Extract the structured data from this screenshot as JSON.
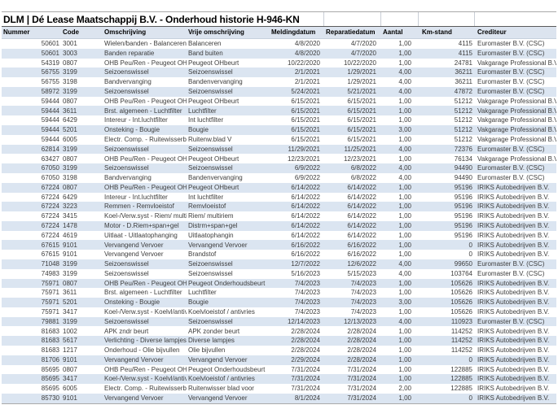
{
  "report": {
    "title": "DLM | Dé Lease Maatschappij B.V. - Onderhoud historie H-946-KN"
  },
  "colors": {
    "row_stripe": "#dbe5f1",
    "header_bg": "#dce4ef",
    "data_text": "#3d3d3d"
  },
  "table": {
    "columns": [
      "Nummer",
      "Code",
      "Omschrijving",
      "Vrije omschrijving",
      "Meldingdatum",
      "Reparatiedatum",
      "Aantal",
      "Km-stand",
      "Crediteur"
    ],
    "rows": [
      [
        "50601",
        "3001",
        "Wielen/banden - Balanceren",
        "Balanceren",
        "4/8/2020",
        "4/7/2020",
        "1,00",
        "4115",
        "Euromaster B.V. (CSC)"
      ],
      [
        "50601",
        "3003",
        "Banden reparatie",
        "Band buiten",
        "4/8/2020",
        "4/7/2020",
        "1,00",
        "4115",
        "Euromaster B.V. (CSC)"
      ],
      [
        "54319",
        "0807",
        "OHB Peu/Ren - Peugeot OHbe",
        "Peugeot OHbeurt",
        "10/22/2020",
        "10/22/2020",
        "1,00",
        "24781",
        "Vakgarage Professional B.V."
      ],
      [
        "56755",
        "3199",
        "Seizoenswissel",
        "Seizoenswissel",
        "2/1/2021",
        "1/29/2021",
        "4,00",
        "36211",
        "Euromaster B.V. (CSC)"
      ],
      [
        "56755",
        "3198",
        "Bandvervanging",
        "Bandenvervanging",
        "2/1/2021",
        "1/29/2021",
        "4,00",
        "36211",
        "Euromaster B.V. (CSC)"
      ],
      [
        "58972",
        "3199",
        "Seizoenswissel",
        "Seizoenswissel",
        "5/24/2021",
        "5/21/2021",
        "4,00",
        "47872",
        "Euromaster B.V. (CSC)"
      ],
      [
        "59444",
        "0807",
        "OHB Peu/Ren - Peugeot OHbe",
        "Peugeot OHbeurt",
        "6/15/2021",
        "6/15/2021",
        "1,00",
        "51212",
        "Vakgarage Professional B.V."
      ],
      [
        "59444",
        "3611",
        "Brst. algemeen - Luchtfilter",
        "Luchtfilter",
        "6/15/2021",
        "6/15/2021",
        "1,00",
        "51212",
        "Vakgarage Professional B.V."
      ],
      [
        "59444",
        "6429",
        "Intereur - Int.luchtfilter",
        "Int luchtfilter",
        "6/15/2021",
        "6/15/2021",
        "1,00",
        "51212",
        "Vakgarage Professional B.V."
      ],
      [
        "59444",
        "5201",
        "Onsteking - Bougie",
        "Bougie",
        "6/15/2021",
        "6/15/2021",
        "3,00",
        "51212",
        "Vakgarage Professional B.V."
      ],
      [
        "59444",
        "6005",
        "Electr. Comp. - Ruitewisserbla",
        "Ruitenw.blad V",
        "6/15/2021",
        "6/15/2021",
        "1,00",
        "51212",
        "Vakgarage Professional B.V."
      ],
      [
        "62814",
        "3199",
        "Seizoenswissel",
        "Seizoenswissel",
        "11/29/2021",
        "11/25/2021",
        "4,00",
        "72376",
        "Euromaster B.V. (CSC)"
      ],
      [
        "63427",
        "0807",
        "OHB Peu/Ren - Peugeot OHbe",
        "Peugeot OHbeurt",
        "12/23/2021",
        "12/23/2021",
        "1,00",
        "76134",
        "Vakgarage Professional B.V."
      ],
      [
        "67050",
        "3199",
        "Seizoenswissel",
        "Seizoenswissel",
        "6/9/2022",
        "6/8/2022",
        "4,00",
        "94490",
        "Euromaster B.V. (CSC)"
      ],
      [
        "67050",
        "3198",
        "Bandvervanging",
        "Bandenvervanging",
        "6/9/2022",
        "6/8/2022",
        "4,00",
        "94490",
        "Euromaster B.V. (CSC)"
      ],
      [
        "67224",
        "0807",
        "OHB Peu/Ren - Peugeot OHbe",
        "Peugeot OHbeurt",
        "6/14/2022",
        "6/14/2022",
        "1,00",
        "95196",
        "IRIKS Autobedrijven B.V."
      ],
      [
        "67224",
        "6429",
        "Intereur - Int.luchtfilter",
        "Int luchtfilter",
        "6/14/2022",
        "6/14/2022",
        "1,00",
        "95196",
        "IRIKS Autobedrijven B.V."
      ],
      [
        "67224",
        "3223",
        "Remmen - Remvloeistof",
        "Remvloeistof",
        "6/14/2022",
        "6/14/2022",
        "1,00",
        "95196",
        "IRIKS Autobedrijven B.V."
      ],
      [
        "67224",
        "3415",
        "Koel-/Verw.syst - Riem/ multiri",
        "Riem/ multiriem",
        "6/14/2022",
        "6/14/2022",
        "1,00",
        "95196",
        "IRIKS Autobedrijven B.V."
      ],
      [
        "67224",
        "1478",
        "Motor - D.Riem+span+gel",
        "Distrm+span+gel",
        "6/14/2022",
        "6/14/2022",
        "1,00",
        "95196",
        "IRIKS Autobedrijven B.V."
      ],
      [
        "67224",
        "4619",
        "Uitlaat - Uitlaatophanging",
        "Uitlaatophangin",
        "6/14/2022",
        "6/14/2022",
        "1,00",
        "95196",
        "IRIKS Autobedrijven B.V."
      ],
      [
        "67615",
        "9101",
        "Vervangend Vervoer",
        "Vervangend Vervoer",
        "6/16/2022",
        "6/16/2022",
        "1,00",
        "0",
        "IRIKS Autobedrijven B.V."
      ],
      [
        "67615",
        "9101",
        "Vervangend Vervoer",
        "Brandstof",
        "6/16/2022",
        "6/16/2022",
        "1,00",
        "0",
        "IRIKS Autobedrijven B.V."
      ],
      [
        "71048",
        "3199",
        "Seizoenswissel",
        "Seizoenswissel",
        "12/7/2022",
        "12/6/2022",
        "4,00",
        "99650",
        "Euromaster B.V. (CSC)"
      ],
      [
        "74983",
        "3199",
        "Seizoenswissel",
        "Seizoenswissel",
        "5/16/2023",
        "5/15/2023",
        "4,00",
        "103764",
        "Euromaster B.V. (CSC)"
      ],
      [
        "75971",
        "0807",
        "OHB Peu/Ren - Peugeot OHbe",
        "Peugeot Onderhoudsbeurt",
        "7/4/2023",
        "7/4/2023",
        "1,00",
        "105626",
        "IRIKS Autobedrijven B.V."
      ],
      [
        "75971",
        "3611",
        "Brst. algemeen - Luchtfilter",
        "Luchtfilter",
        "7/4/2023",
        "7/4/2023",
        "1,00",
        "105626",
        "IRIKS Autobedrijven B.V."
      ],
      [
        "75971",
        "5201",
        "Onsteking - Bougie",
        "Bougie",
        "7/4/2023",
        "7/4/2023",
        "3,00",
        "105626",
        "IRIKS Autobedrijven B.V."
      ],
      [
        "75971",
        "3417",
        "Koel-/Verw.syst - Koelvl/antivri",
        "Koelvloeistof / antivries",
        "7/4/2023",
        "7/4/2023",
        "1,00",
        "105626",
        "IRIKS Autobedrijven B.V."
      ],
      [
        "79881",
        "3199",
        "Seizoenswissel",
        "Seizoenswissel",
        "12/14/2023",
        "12/13/2023",
        "4,00",
        "110923",
        "Euromaster B.V. (CSC)"
      ],
      [
        "81683",
        "1002",
        "APK zndr beurt",
        "APK zonder beurt",
        "2/28/2024",
        "2/28/2024",
        "1,00",
        "114252",
        "IRIKS Autobedrijven B.V."
      ],
      [
        "81683",
        "5617",
        "Verlichting - Diverse lampjes",
        "Diverse lampjes",
        "2/28/2024",
        "2/28/2024",
        "1,00",
        "114252",
        "IRIKS Autobedrijven B.V."
      ],
      [
        "81683",
        "1217",
        "Onderhoud - Olie bijvullen",
        "Olie bijvullen",
        "2/28/2024",
        "2/28/2024",
        "1,00",
        "114252",
        "IRIKS Autobedrijven B.V."
      ],
      [
        "81706",
        "9101",
        "Vervangend Vervoer",
        "Vervangend Vervoer",
        "2/29/2024",
        "2/28/2024",
        "1,00",
        "0",
        "IRIKS Autobedrijven B.V."
      ],
      [
        "85695",
        "0807",
        "OHB Peu/Ren - Peugeot OHbe",
        "Peugeot Onderhoudsbeurt",
        "7/31/2024",
        "7/31/2024",
        "1,00",
        "122885",
        "IRIKS Autobedrijven B.V."
      ],
      [
        "85695",
        "3417",
        "Koel-/Verw.syst - Koelvl/antivri",
        "Koelvloeistof / antivries",
        "7/31/2024",
        "7/31/2024",
        "1,00",
        "122885",
        "IRIKS Autobedrijven B.V."
      ],
      [
        "85695",
        "6005",
        "Electr. Comp. - Ruitewisserbla",
        "Ruitenwisser blad voor",
        "7/31/2024",
        "7/31/2024",
        "2,00",
        "122885",
        "IRIKS Autobedrijven B.V."
      ],
      [
        "85730",
        "9101",
        "Vervangend Vervoer",
        "Vervangend Vervoer",
        "8/1/2024",
        "7/31/2024",
        "1,00",
        "0",
        "IRIKS Autobedrijven B.V."
      ]
    ]
  }
}
